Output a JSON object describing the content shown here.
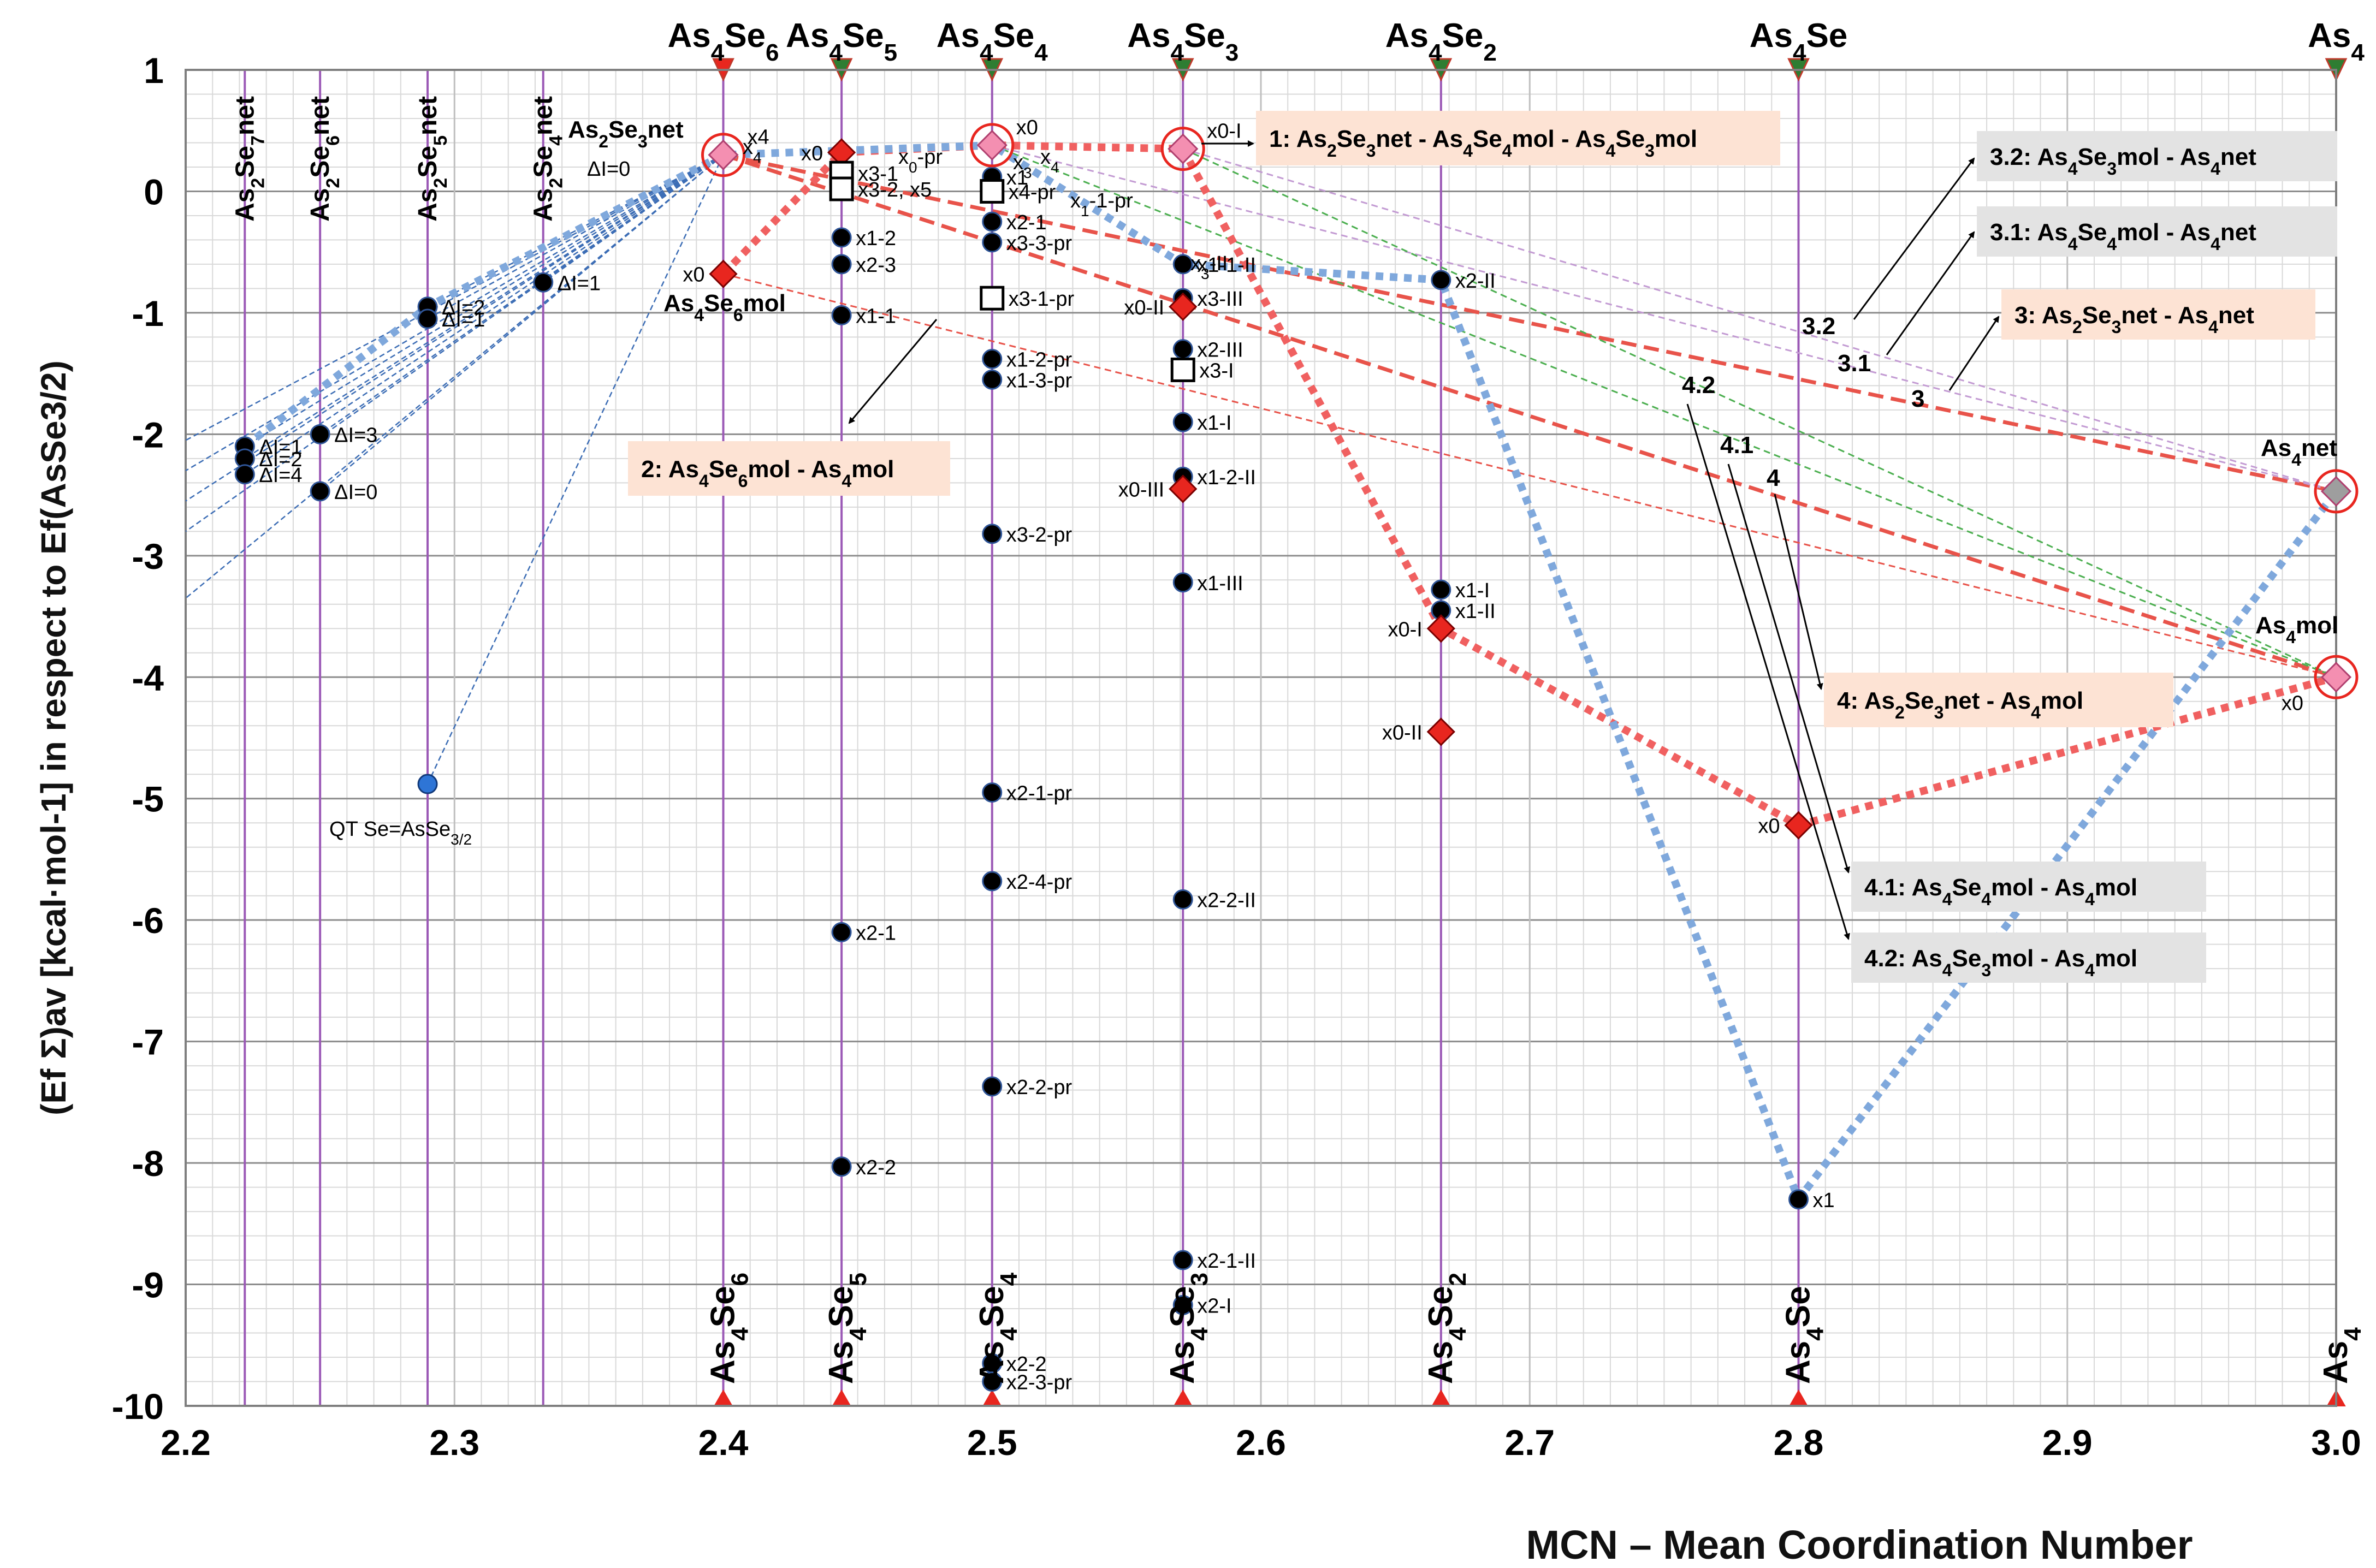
{
  "chart_data": {
    "type": "scatter",
    "xlabel": "MCN – Mean Coordination Number",
    "ylabel": "(Ef Σ)av [kcal·mol-1] in respect to Ef(AsSe3/2)",
    "xlim": [
      2.2,
      3.0
    ],
    "ylim": [
      -10,
      1
    ],
    "x_ticks": [
      "2.2",
      "2.3",
      "2.4",
      "2.5",
      "2.6",
      "2.7",
      "2.8",
      "2.9",
      "3.0"
    ],
    "y_ticks": [
      "1",
      "0",
      "-1",
      "-2",
      "-3",
      "-4",
      "-5",
      "-6",
      "-7",
      "-8",
      "-9",
      "-10"
    ],
    "compositions": [
      {
        "x": 2.4,
        "name": "As4Se6",
        "top": "As4Se6",
        "bottom": "As4Se6"
      },
      {
        "x": 2.444,
        "name": "As4Se5",
        "top": "As4Se5",
        "bottom": "As4Se5"
      },
      {
        "x": 2.5,
        "name": "As4Se4",
        "top": "As4Se4",
        "bottom": "As4Se4"
      },
      {
        "x": 2.571,
        "name": "As4Se3",
        "top": "As4Se3",
        "bottom": "As4Se3"
      },
      {
        "x": 2.667,
        "name": "As4Se2",
        "top": "As4Se2",
        "bottom": "As4Se2"
      },
      {
        "x": 2.8,
        "name": "As4Se",
        "top": "As4Se",
        "bottom": "As4Se"
      },
      {
        "x": 3.0,
        "name": "As4",
        "top": "As4",
        "bottom": "As4"
      }
    ],
    "network_lines": [
      {
        "x": 2.222,
        "label": "As2Se7net"
      },
      {
        "x": 2.25,
        "label": "As2Se6net"
      },
      {
        "x": 2.29,
        "label": "As2Se5net"
      },
      {
        "x": 2.333,
        "label": "As2Se4net"
      }
    ],
    "points_black": [
      {
        "x": 2.222,
        "y": -2.1,
        "label": "ΔI=1"
      },
      {
        "x": 2.222,
        "y": -2.2,
        "label": "ΔI=2"
      },
      {
        "x": 2.222,
        "y": -2.33,
        "label": "ΔI=4"
      },
      {
        "x": 2.25,
        "y": -2.0,
        "label": "ΔI=3"
      },
      {
        "x": 2.25,
        "y": -2.47,
        "label": "ΔI=0"
      },
      {
        "x": 2.29,
        "y": -0.95,
        "label": "ΔI=2"
      },
      {
        "x": 2.29,
        "y": -1.05,
        "label": "ΔI=1"
      },
      {
        "x": 2.333,
        "y": -0.75,
        "label": "ΔI=1"
      },
      {
        "x": 2.444,
        "y": -0.38,
        "label": "x1-2"
      },
      {
        "x": 2.444,
        "y": -0.6,
        "label": "x2-3"
      },
      {
        "x": 2.444,
        "y": -1.02,
        "label": "x1-1"
      },
      {
        "x": 2.444,
        "y": -6.1,
        "label": "x2-1"
      },
      {
        "x": 2.444,
        "y": -8.03,
        "label": "x2-2"
      },
      {
        "x": 2.5,
        "y": 0.12,
        "label": "x1"
      },
      {
        "x": 2.5,
        "y": -0.25,
        "label": "x2-1"
      },
      {
        "x": 2.5,
        "y": -0.42,
        "label": "x3-3-pr"
      },
      {
        "x": 2.5,
        "y": -1.38,
        "label": "x1-2-pr"
      },
      {
        "x": 2.5,
        "y": -1.55,
        "label": "x1-3-pr"
      },
      {
        "x": 2.5,
        "y": -2.82,
        "label": "x3-2-pr"
      },
      {
        "x": 2.5,
        "y": -4.95,
        "label": "x2-1-pr"
      },
      {
        "x": 2.5,
        "y": -5.68,
        "label": "x2-4-pr"
      },
      {
        "x": 2.5,
        "y": -7.37,
        "label": "x2-2-pr"
      },
      {
        "x": 2.5,
        "y": -9.65,
        "label": "x2-2"
      },
      {
        "x": 2.5,
        "y": -9.8,
        "label": "x2-3-pr"
      },
      {
        "x": 2.571,
        "y": -0.6,
        "label": "x1-1-II"
      },
      {
        "x": 2.571,
        "y": -0.88,
        "label": "x3-III"
      },
      {
        "x": 2.571,
        "y": -1.3,
        "label": "x2-III"
      },
      {
        "x": 2.571,
        "y": -1.9,
        "label": "x1-I"
      },
      {
        "x": 2.571,
        "y": -2.35,
        "label": "x1-2-II"
      },
      {
        "x": 2.571,
        "y": -3.22,
        "label": "x1-III"
      },
      {
        "x": 2.571,
        "y": -5.83,
        "label": "x2-2-II"
      },
      {
        "x": 2.571,
        "y": -8.8,
        "label": "x2-1-II"
      },
      {
        "x": 2.571,
        "y": -9.17,
        "label": "x2-I"
      },
      {
        "x": 2.667,
        "y": -0.73,
        "label": "x2-II"
      },
      {
        "x": 2.667,
        "y": -3.28,
        "label": "x1-I"
      },
      {
        "x": 2.667,
        "y": -3.45,
        "label": "x1-II"
      },
      {
        "x": 2.8,
        "y": -8.3,
        "label": "x1"
      }
    ],
    "points_red_diamond": [
      {
        "x": 2.4,
        "y": -0.68,
        "label": "x0"
      },
      {
        "x": 2.444,
        "y": 0.32,
        "label": "x0"
      },
      {
        "x": 2.571,
        "y": -0.95,
        "label": "x0-II"
      },
      {
        "x": 2.571,
        "y": -2.45,
        "label": "x0-III"
      },
      {
        "x": 2.667,
        "y": -3.6,
        "label": "x0-I"
      },
      {
        "x": 2.667,
        "y": -4.45,
        "label": "x0-II"
      },
      {
        "x": 2.8,
        "y": -5.22,
        "label": "x0"
      }
    ],
    "points_open_square": [
      {
        "x": 2.444,
        "y": 0.15,
        "label": "x3-1"
      },
      {
        "x": 2.444,
        "y": 0.02,
        "label": "x3-2, x5"
      },
      {
        "x": 2.5,
        "y": 0.0,
        "label": "x4-pr"
      },
      {
        "x": 2.5,
        "y": -0.88,
        "label": "x3-1-pr"
      },
      {
        "x": 2.571,
        "y": -1.47,
        "label": "x3-I"
      }
    ],
    "points_circled": [
      {
        "x": 2.4,
        "y": 0.3,
        "label": "x4"
      },
      {
        "x": 2.5,
        "y": 0.38,
        "label": "x0"
      },
      {
        "x": 2.571,
        "y": 0.35,
        "label": "x0-I"
      },
      {
        "x": 3.0,
        "y": -2.47,
        "label": "Ås4net"
      },
      {
        "x": 3.0,
        "y": -4.0,
        "label": "x0"
      }
    ],
    "qt_point": {
      "x": 2.29,
      "y": -4.88,
      "label": "QT Se=AsSe3/2"
    },
    "extra_labels": [
      "As2Se3net",
      "ΔI=0",
      "As4Se6mol",
      "x4",
      "x0-pr",
      "x3",
      "x4",
      "x1-1-pr",
      "x3-II",
      "As4net",
      "As4mol"
    ],
    "line_numbers": [
      "3.2",
      "3.1",
      "3",
      "4.2",
      "4.1",
      "4"
    ],
    "legend_boxes": [
      {
        "id": "1",
        "text": "1: As2Se3net - As4Se4mol - As4Se3mol"
      },
      {
        "id": "2",
        "text": "2: As4Se6mol - As4mol"
      },
      {
        "id": "3.2",
        "text": "3.2: As4Se3mol - As4net"
      },
      {
        "id": "3.1",
        "text": "3.1: As4Se4mol - As4net"
      },
      {
        "id": "3",
        "text": "3: As2Se3net - As4net"
      },
      {
        "id": "4",
        "text": "4: As2Se3net - As4mol"
      },
      {
        "id": "4.1",
        "text": "4.1: As4Se4mol - As4mol"
      },
      {
        "id": "4.2",
        "text": "4.2: As4Se3mol - As4mol"
      }
    ],
    "series_lines": [
      {
        "name": "red dotted (molecular minimum)",
        "color": "#f06060",
        "points": [
          [
            2.4,
            -0.68
          ],
          [
            2.444,
            0.32
          ],
          [
            2.5,
            0.38
          ],
          [
            2.571,
            0.35
          ],
          [
            2.667,
            -3.6
          ],
          [
            2.8,
            -5.22
          ],
          [
            3.0,
            -4.0
          ]
        ]
      },
      {
        "name": "blue dotted (network minimum)",
        "color": "#7fa8dc",
        "points": [
          [
            2.222,
            -2.1
          ],
          [
            2.29,
            -0.95
          ],
          [
            2.4,
            0.3
          ],
          [
            2.5,
            0.38
          ],
          [
            2.571,
            -0.6
          ],
          [
            2.667,
            -0.73
          ],
          [
            2.8,
            -8.3
          ],
          [
            3.0,
            -2.47
          ]
        ]
      }
    ],
    "colors": {
      "grid": "#a6a6a6",
      "vline": "#9b59b6",
      "red": "#e8261f",
      "blue_dots": "#7fa8dc",
      "box_pink": "#fde3d4",
      "box_gray": "#e3e3e3"
    }
  }
}
